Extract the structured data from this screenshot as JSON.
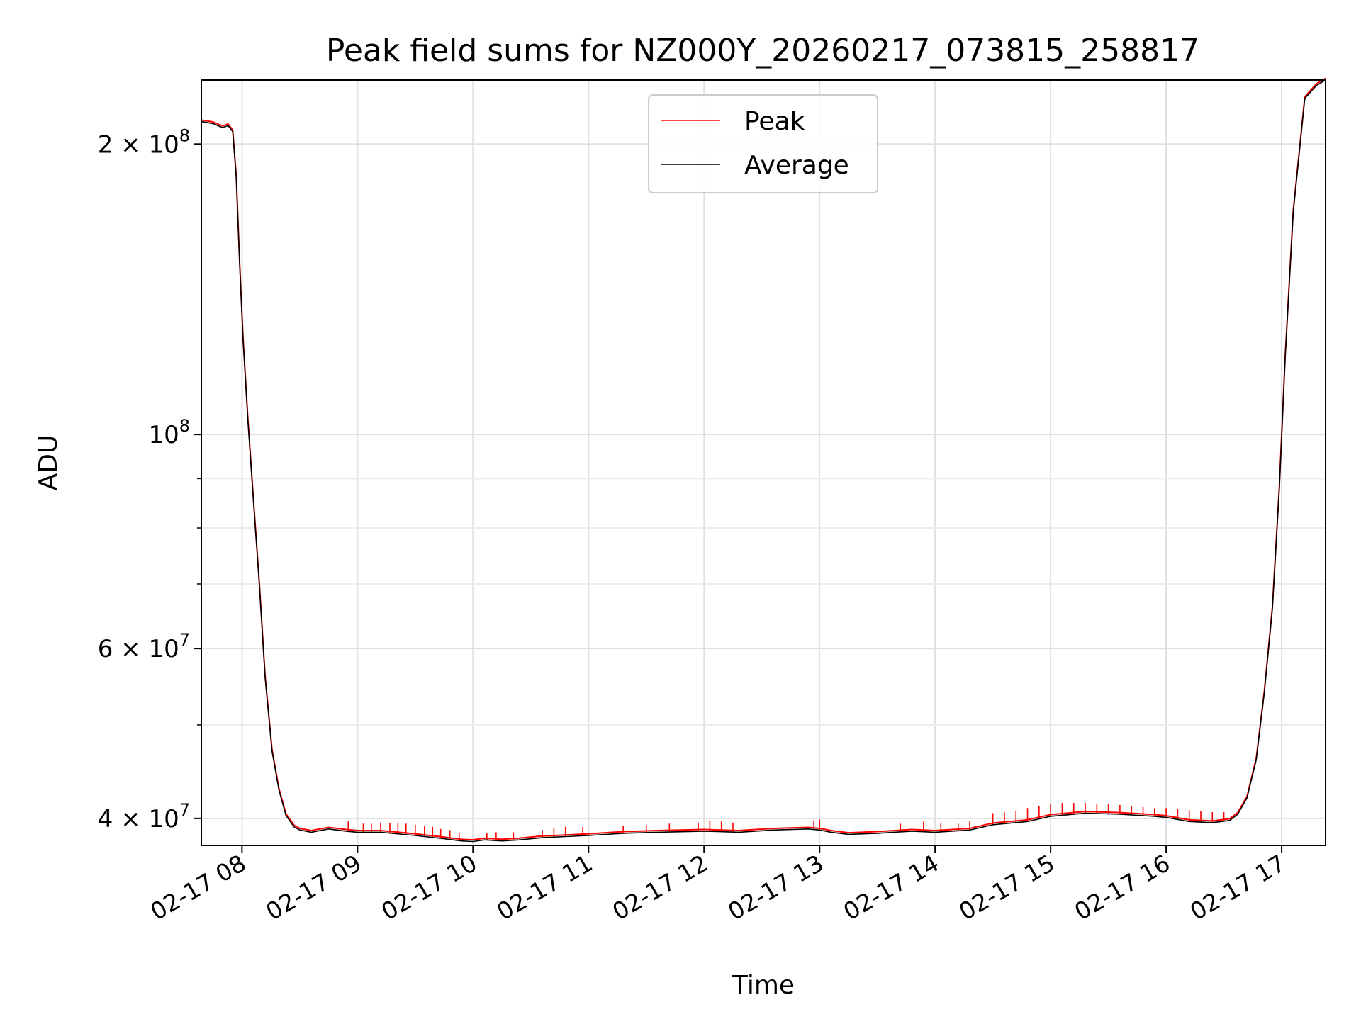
{
  "chart_data": {
    "type": "line",
    "title": "Peak field sums for NZ000Y_20260217_073815_258817",
    "xlabel": "Time",
    "ylabel": "ADU",
    "yscale": "log",
    "xlim_hours": [
      7.648,
      17.38
    ],
    "ylim": [
      37500000,
      233000000
    ],
    "grid": true,
    "legend_position": "upper center",
    "x_tick_labels": [
      "02-17 08",
      "02-17 09",
      "02-17 10",
      "02-17 11",
      "02-17 12",
      "02-17 13",
      "02-17 14",
      "02-17 15",
      "02-17 16",
      "02-17 17"
    ],
    "x_tick_hours": [
      8,
      9,
      10,
      11,
      12,
      13,
      14,
      15,
      16,
      17
    ],
    "y_major_ticks": [
      {
        "value": 40000000,
        "mantissa": "4",
        "exponent": "7"
      },
      {
        "value": 60000000,
        "mantissa": "6",
        "exponent": "7"
      },
      {
        "value": 100000000,
        "mantissa": "",
        "exponent": "8"
      },
      {
        "value": 200000000,
        "mantissa": "2",
        "exponent": "8"
      }
    ],
    "y_minor_ticks": [
      50000000,
      70000000,
      80000000,
      90000000
    ],
    "series": [
      {
        "name": "Average",
        "color": "#000000",
        "x_hours": [
          7.648,
          7.75,
          7.83,
          7.88,
          7.92,
          7.95,
          7.98,
          8.01,
          8.05,
          8.1,
          8.15,
          8.2,
          8.26,
          8.32,
          8.38,
          8.45,
          8.5,
          8.6,
          8.75,
          8.9,
          9.0,
          9.2,
          9.5,
          9.75,
          9.9,
          10.0,
          10.1,
          10.25,
          10.4,
          10.6,
          10.8,
          11.0,
          11.3,
          11.6,
          12.0,
          12.3,
          12.6,
          12.9,
          13.0,
          13.1,
          13.25,
          13.5,
          13.8,
          14.0,
          14.3,
          14.5,
          14.8,
          15.0,
          15.3,
          15.6,
          15.9,
          16.0,
          16.2,
          16.4,
          16.55,
          16.62,
          16.7,
          16.78,
          16.85,
          16.92,
          16.98,
          17.03,
          17.1,
          17.2,
          17.3,
          17.38
        ],
        "values": [
          211000000,
          210000000,
          208000000,
          209000000,
          206000000,
          185000000,
          150000000,
          125000000,
          104000000,
          85000000,
          70000000,
          56000000,
          47000000,
          42800000,
          40300000,
          39200000,
          38900000,
          38700000,
          39000000,
          38800000,
          38700000,
          38700000,
          38400000,
          38100000,
          37900000,
          37850000,
          38000000,
          37900000,
          38000000,
          38200000,
          38300000,
          38400000,
          38600000,
          38700000,
          38800000,
          38700000,
          38900000,
          39000000,
          38900000,
          38700000,
          38500000,
          38600000,
          38800000,
          38700000,
          38900000,
          39400000,
          39700000,
          40200000,
          40500000,
          40400000,
          40200000,
          40100000,
          39700000,
          39600000,
          39800000,
          40400000,
          42000000,
          46000000,
          54000000,
          66000000,
          88000000,
          120000000,
          170000000,
          223000000,
          230000000,
          233000000
        ]
      },
      {
        "name": "Peak",
        "color": "#ff0000",
        "spike_x_hours": [
          8.92,
          9.05,
          9.12,
          9.2,
          9.28,
          9.35,
          9.42,
          9.5,
          9.58,
          9.65,
          9.72,
          9.8,
          9.88,
          10.12,
          10.2,
          10.35,
          10.6,
          10.7,
          10.8,
          10.95,
          11.3,
          11.5,
          11.7,
          11.95,
          12.05,
          12.15,
          12.25,
          12.95,
          13.0,
          13.7,
          13.9,
          14.05,
          14.2,
          14.3,
          14.5,
          14.6,
          14.7,
          14.8,
          14.9,
          15.0,
          15.1,
          15.2,
          15.3,
          15.4,
          15.5,
          15.6,
          15.7,
          15.8,
          15.9,
          16.0,
          16.1,
          16.2,
          16.3,
          16.4,
          16.5
        ],
        "spike_values": [
          39700000,
          39500000,
          39500000,
          39600000,
          39600000,
          39600000,
          39500000,
          39400000,
          39300000,
          39200000,
          39000000,
          38900000,
          38700000,
          38600000,
          38700000,
          38700000,
          38900000,
          39100000,
          39200000,
          39200000,
          39300000,
          39400000,
          39500000,
          39600000,
          39800000,
          39700000,
          39600000,
          39800000,
          39900000,
          39500000,
          39700000,
          39600000,
          39500000,
          39700000,
          40500000,
          40600000,
          40700000,
          41000000,
          41200000,
          41400000,
          41500000,
          41500000,
          41500000,
          41400000,
          41400000,
          41300000,
          41200000,
          41100000,
          41000000,
          41000000,
          40900000,
          40800000,
          40700000,
          40600000,
          40600000
        ]
      }
    ],
    "legend": [
      "Peak",
      "Average"
    ]
  }
}
